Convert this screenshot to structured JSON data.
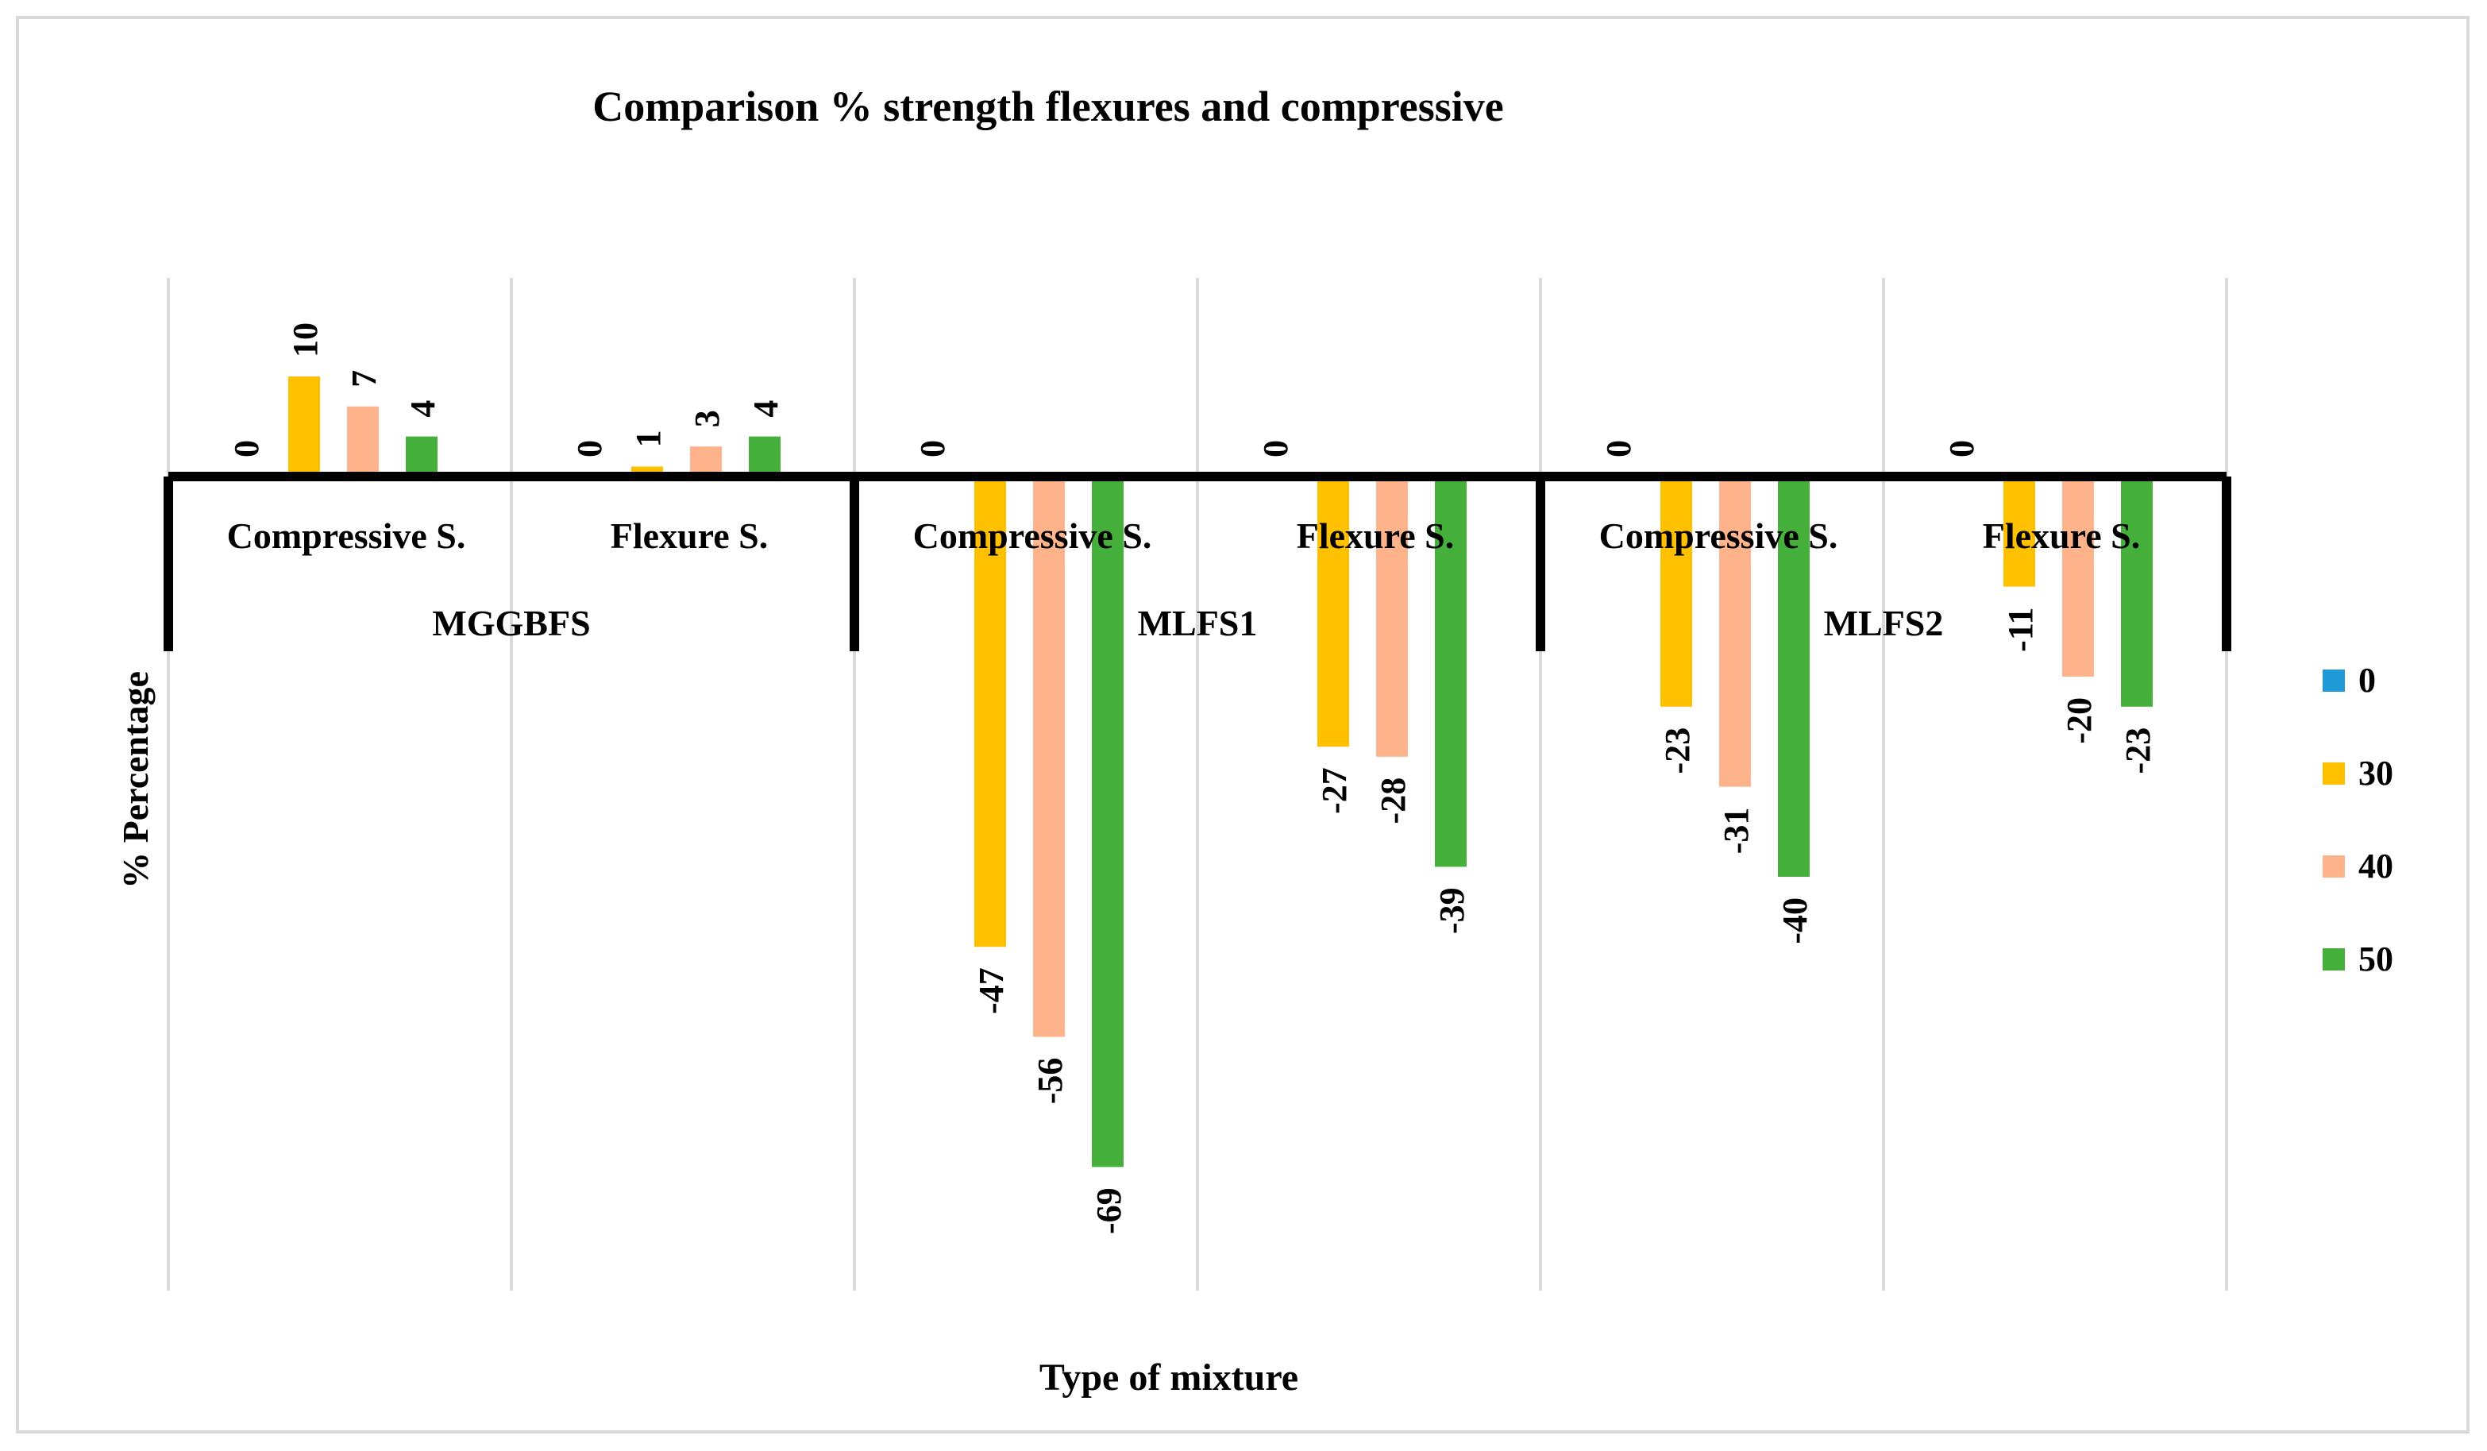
{
  "chart_data": {
    "type": "bar",
    "title": "Comparison % strength flexures and compressive",
    "xlabel": "Type of mixture",
    "ylabel": "% Percentage",
    "groups": [
      {
        "label": "MGGBFS",
        "categories": [
          "Compressive S.",
          "Flexure S."
        ]
      },
      {
        "label": "MLFS1",
        "categories": [
          "Compressive S.",
          "Flexure S."
        ]
      },
      {
        "label": "MLFS2",
        "categories": [
          "Compressive S.",
          "Flexure S."
        ]
      }
    ],
    "categories": [
      "MGGBFS Compressive S.",
      "MGGBFS Flexure S.",
      "MLFS1 Compressive S.",
      "MLFS1 Flexure S.",
      "MLFS2 Compressive S.",
      "MLFS2 Flexure S."
    ],
    "series": [
      {
        "name": "0",
        "color": "#1f9ad6",
        "values": [
          0,
          0,
          0,
          0,
          0,
          0
        ]
      },
      {
        "name": "30",
        "color": "#ffc000",
        "values": [
          10,
          1,
          -47,
          -27,
          -23,
          -11
        ]
      },
      {
        "name": "40",
        "color": "#ffb38a",
        "values": [
          7,
          3,
          -56,
          -28,
          -31,
          -20
        ]
      },
      {
        "name": "50",
        "color": "#44b03b",
        "values": [
          4,
          4,
          -69,
          -39,
          -40,
          -23
        ]
      }
    ],
    "ylim": [
      -80,
      20
    ],
    "grid": "vertical category separators",
    "legend": "right"
  }
}
